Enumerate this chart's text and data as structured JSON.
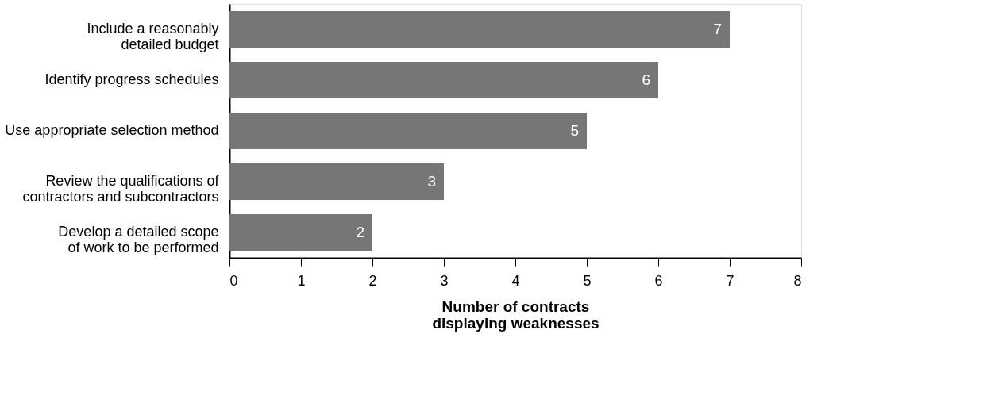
{
  "chart_data": {
    "type": "bar",
    "orientation": "horizontal",
    "xlabel": "Number of contracts displaying weaknesses",
    "categories": [
      "Include a reasonably detailed budget",
      "Identify progress schedules",
      "Use appropriate selection method",
      "Review the qualifications of contractors and subcontractors",
      "Develop a detailed scope of work to be performed"
    ],
    "values": [
      7,
      6,
      5,
      3,
      2
    ],
    "color": "#767676",
    "data_labels": true,
    "xlim": [
      0,
      8
    ],
    "xticks": [
      0,
      1,
      2,
      3,
      4,
      5,
      6,
      7,
      8
    ],
    "grid": false
  }
}
